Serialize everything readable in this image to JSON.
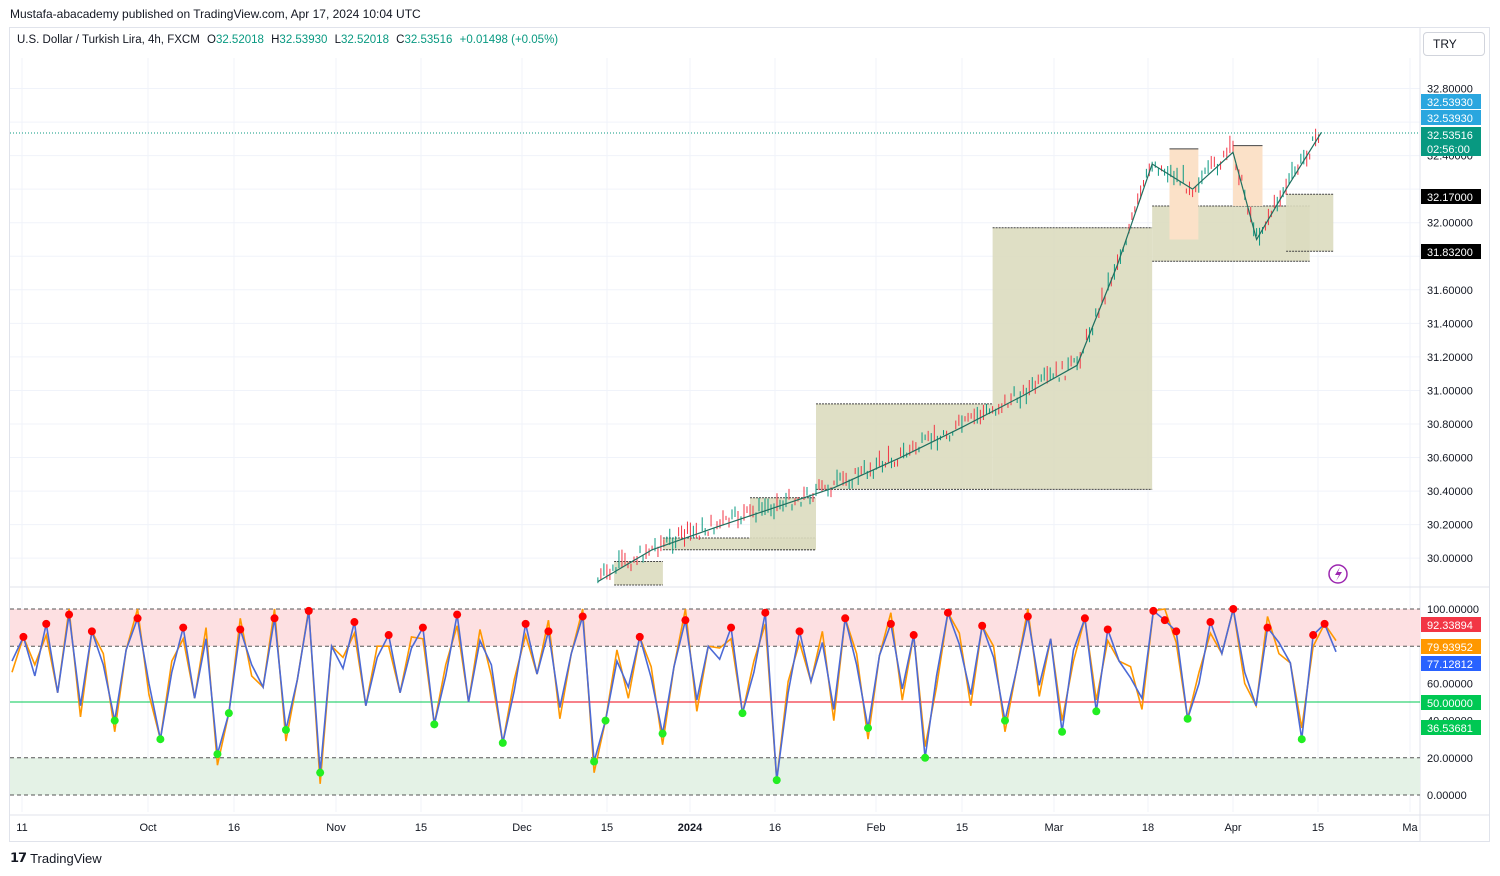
{
  "publisher": "Mustafa-abacademy published on TradingView.com, Apr 17, 2024 10:04 UTC",
  "legend": {
    "symbol": "U.S. Dollar / Turkish Lira, 4h, FXCM",
    "open_label": "O",
    "open": "32.52018",
    "high_label": "H",
    "high": "32.53930",
    "low_label": "L",
    "low": "32.52018",
    "close_label": "C",
    "close": "32.53516",
    "change": "+0.01498 (+0.05%)"
  },
  "currency_button": "TRY",
  "footer_brand": "TradingView",
  "colors": {
    "up": "#089981",
    "down": "#f23645",
    "zone": "#dcdcbf",
    "zone_peach": "#fbe1c8",
    "rsi_blue": "#4c6ad6",
    "rsi_orange": "#ff9800",
    "overbought_fill": "#fde0e2",
    "oversold_fill": "#e4f2e6",
    "red_dot": "#ff0000",
    "green_dot": "#22ee22"
  },
  "chart_data": [
    {
      "type": "line",
      "title": "U.S. Dollar / Turkish Lira, 4h, FXCM",
      "x_tick_labels": [
        "11",
        "Oct",
        "16",
        "Nov",
        "15",
        "Dec",
        "15",
        "2024",
        "16",
        "Feb",
        "15",
        "Mar",
        "18",
        "Apr",
        "15",
        "Ma"
      ],
      "y_tick_labels": [
        "32.80000",
        "32.40000",
        "32.00000",
        "31.60000",
        "31.40000",
        "31.20000",
        "31.00000",
        "30.80000",
        "30.60000",
        "30.40000",
        "30.20000",
        "30.00000"
      ],
      "ylim": [
        29.84,
        33.0
      ],
      "price_labels": [
        {
          "text": "32.53930",
          "color": "#2aa6df"
        },
        {
          "text": "32.53930",
          "color": "#2aa6df"
        },
        {
          "text": "32.53516",
          "color": "#089981"
        },
        {
          "text": "02:56:00",
          "color": "#089981"
        },
        {
          "text": "32.17000",
          "color": "#000000"
        },
        {
          "text": "31.83200",
          "color": "#000000"
        }
      ],
      "series": [
        {
          "x": [
            "Dec 15",
            "Dec 25",
            "Jan 5",
            "Jan 15",
            "Jan 25",
            "Feb 5",
            "Feb 15",
            "Feb 25",
            "Mar 5",
            "Mar 12",
            "Mar 18",
            "Mar 25",
            "Apr 1",
            "Apr 5",
            "Apr 10",
            "Apr 16"
          ],
          "values": [
            29.86,
            30.05,
            30.18,
            30.3,
            30.42,
            30.6,
            30.78,
            30.97,
            31.15,
            31.75,
            32.35,
            32.2,
            32.42,
            31.9,
            32.2,
            32.54
          ]
        }
      ],
      "zones": [
        {
          "from": "Dec 18",
          "to": "Dec 27",
          "top": 29.98,
          "bottom": 29.84
        },
        {
          "from": "Dec 27",
          "to": "Jan 22",
          "top": 30.12,
          "bottom": 30.05
        },
        {
          "from": "Jan 11",
          "to": "Jan 22",
          "top": 30.36,
          "bottom": 30.05
        },
        {
          "from": "Jan 22",
          "to": "Feb 20",
          "top": 30.92,
          "bottom": 30.41
        },
        {
          "from": "Feb 20",
          "to": "Mar 18",
          "top": 31.97,
          "bottom": 30.41
        },
        {
          "from": "Mar 18",
          "to": "Apr 14",
          "top": 32.1,
          "bottom": 31.77
        },
        {
          "from": "Apr 10",
          "to": "Apr 18",
          "top": 32.17,
          "bottom": 31.83
        }
      ]
    },
    {
      "type": "line",
      "y_tick_labels": [
        "100.00000",
        "60.00000",
        "40.00000",
        "20.00000",
        "0.00000"
      ],
      "ylim": [
        0,
        100
      ],
      "levels": [
        100,
        80,
        50,
        20,
        0
      ],
      "value_labels": [
        {
          "text": "92.33894",
          "color": "#f23645"
        },
        {
          "text": "79.93952",
          "color": "#ff9800"
        },
        {
          "text": "77.12812",
          "color": "#2962ff"
        },
        {
          "text": "50.00000",
          "color": "#00c853"
        },
        {
          "text": "36.53681",
          "color": "#00c853"
        }
      ],
      "series": [
        {
          "values": [
            72,
            85,
            64,
            92,
            55,
            97,
            48,
            88,
            70,
            40,
            78,
            95,
            60,
            30,
            66,
            90,
            52,
            84,
            22,
            44,
            89,
            70,
            58,
            95,
            35,
            62,
            99,
            12,
            80,
            68,
            93,
            48,
            74,
            86,
            55,
            79,
            90,
            38,
            64,
            97,
            50,
            83,
            70,
            28,
            56,
            92,
            65,
            88,
            47,
            76,
            96,
            18,
            40,
            72,
            58,
            85,
            63,
            33,
            69,
            94,
            51,
            80,
            73,
            90,
            44,
            66,
            98,
            8,
            55,
            88,
            61,
            82,
            46,
            95,
            70,
            36,
            75,
            92,
            57,
            86,
            20,
            64,
            98,
            81,
            54,
            91,
            74,
            40,
            67,
            96,
            59,
            84,
            34,
            78,
            95,
            45,
            89,
            72,
            63,
            52,
            99,
            94,
            88,
            41,
            60,
            93,
            76,
            100,
            66,
            48,
            90,
            82,
            71,
            30,
            86,
            92,
            77
          ]
        }
      ]
    }
  ]
}
